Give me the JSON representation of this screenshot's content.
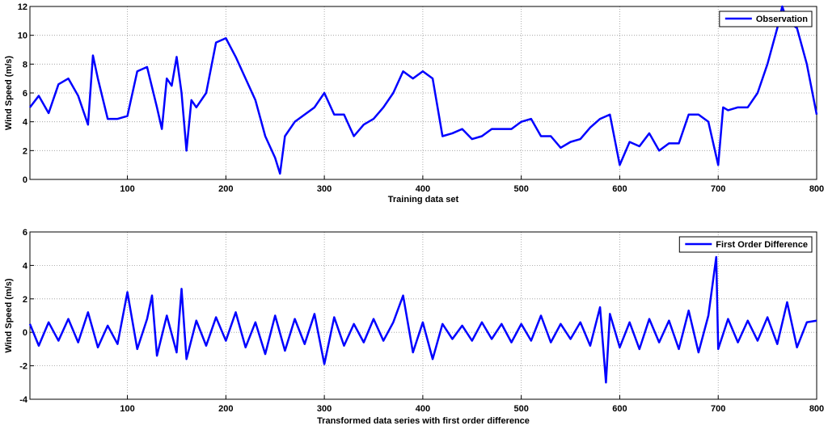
{
  "chart_data": [
    {
      "type": "line",
      "xlabel": "Training data set",
      "ylabel": "Wind Speed (m/s)",
      "xlim": [
        1,
        800
      ],
      "xticks": [
        100,
        200,
        300,
        400,
        500,
        600,
        700,
        800
      ],
      "ylim": [
        0,
        12
      ],
      "yticks": [
        0,
        2,
        4,
        6,
        8,
        10,
        12
      ],
      "grid": true,
      "legend": "upper right",
      "x": [
        1,
        10,
        20,
        30,
        40,
        50,
        60,
        65,
        70,
        80,
        90,
        100,
        110,
        120,
        130,
        135,
        140,
        145,
        150,
        155,
        160,
        165,
        170,
        180,
        190,
        200,
        210,
        220,
        230,
        240,
        250,
        255,
        260,
        270,
        280,
        290,
        300,
        310,
        320,
        330,
        340,
        350,
        360,
        370,
        380,
        390,
        400,
        410,
        420,
        430,
        440,
        450,
        460,
        470,
        480,
        490,
        500,
        510,
        520,
        530,
        540,
        550,
        560,
        570,
        580,
        590,
        600,
        610,
        620,
        630,
        640,
        650,
        660,
        670,
        680,
        690,
        700,
        705,
        710,
        720,
        730,
        740,
        750,
        760,
        765,
        770,
        780,
        790,
        800
      ],
      "series": [
        {
          "name": "Observation",
          "color": "#0000ff",
          "values": [
            5,
            5.8,
            4.6,
            6.6,
            7,
            5.8,
            3.8,
            8.6,
            7,
            4.2,
            4.2,
            4.4,
            7.5,
            7.8,
            5,
            3.5,
            7,
            6.5,
            8.5,
            6,
            2,
            5.5,
            5,
            6,
            9.5,
            9.8,
            8.5,
            7,
            5.5,
            3,
            1.5,
            0.4,
            3,
            4,
            4.5,
            5,
            6,
            4.5,
            4.5,
            3,
            3.8,
            4.2,
            5,
            6,
            7.5,
            7,
            7.5,
            7,
            3,
            3.2,
            3.5,
            2.8,
            3,
            3.5,
            3.5,
            3.5,
            4,
            4.2,
            3,
            3,
            2.2,
            2.6,
            2.8,
            3.6,
            4.2,
            4.5,
            1,
            2.6,
            2.3,
            3.2,
            2,
            2.5,
            2.5,
            4.5,
            4.5,
            4,
            1,
            5,
            4.8,
            5,
            5,
            6,
            8,
            10.5,
            12,
            11,
            10.5,
            8,
            4.5
          ]
        }
      ]
    },
    {
      "type": "line",
      "xlabel": "Transformed data series with first order difference",
      "ylabel": "Wind Speed (m/s)",
      "xlim": [
        1,
        800
      ],
      "xticks": [
        100,
        200,
        300,
        400,
        500,
        600,
        700,
        800
      ],
      "ylim": [
        -4,
        6
      ],
      "yticks": [
        -4,
        -2,
        0,
        2,
        4,
        6
      ],
      "grid": true,
      "legend": "upper right",
      "x": [
        1,
        10,
        20,
        30,
        40,
        50,
        60,
        70,
        80,
        90,
        100,
        110,
        120,
        125,
        130,
        140,
        150,
        155,
        160,
        170,
        180,
        190,
        200,
        210,
        220,
        230,
        240,
        250,
        260,
        270,
        280,
        290,
        300,
        310,
        320,
        330,
        340,
        350,
        360,
        370,
        380,
        390,
        400,
        410,
        420,
        430,
        440,
        450,
        460,
        470,
        480,
        490,
        500,
        510,
        520,
        530,
        540,
        550,
        560,
        570,
        580,
        586,
        590,
        600,
        610,
        620,
        630,
        640,
        650,
        660,
        670,
        680,
        690,
        698,
        700,
        710,
        720,
        730,
        740,
        750,
        760,
        770,
        780,
        790,
        800
      ],
      "series": [
        {
          "name": "First Order Difference",
          "color": "#0000ff",
          "values": [
            0.5,
            -0.8,
            0.6,
            -0.5,
            0.8,
            -0.6,
            1.2,
            -0.9,
            0.4,
            -0.7,
            2.4,
            -1.0,
            0.8,
            2.2,
            -1.4,
            1.0,
            -1.2,
            2.6,
            -1.6,
            0.7,
            -0.8,
            0.9,
            -0.5,
            1.2,
            -0.9,
            0.6,
            -1.3,
            1.0,
            -1.1,
            0.8,
            -0.7,
            1.1,
            -1.9,
            0.9,
            -0.8,
            0.5,
            -0.6,
            0.8,
            -0.5,
            0.6,
            2.2,
            -1.2,
            0.6,
            -1.6,
            0.5,
            -0.4,
            0.4,
            -0.5,
            0.6,
            -0.4,
            0.5,
            -0.6,
            0.5,
            -0.5,
            1.0,
            -0.6,
            0.5,
            -0.4,
            0.6,
            -0.8,
            1.5,
            -3,
            1.1,
            -0.9,
            0.6,
            -1.0,
            0.8,
            -0.6,
            0.7,
            -1.0,
            1.3,
            -1.2,
            1.0,
            4.5,
            -1.0,
            0.8,
            -0.6,
            0.7,
            -0.5,
            0.9,
            -0.7,
            1.8,
            -0.9,
            0.6,
            0.7
          ]
        }
      ]
    }
  ]
}
